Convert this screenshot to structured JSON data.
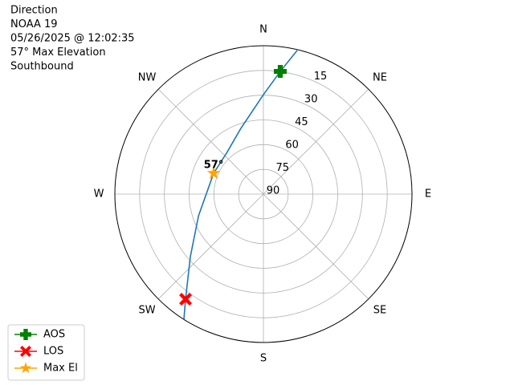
{
  "chart_data": {
    "type": "polar",
    "title_lines": [
      "Direction",
      "NOAA 19",
      "05/26/2025 @ 12:02:35",
      "57° Max Elevation",
      "Southbound"
    ],
    "rlim": [
      90,
      0
    ],
    "rticks": [
      15,
      30,
      45,
      60,
      75,
      90
    ],
    "thetaticks": [
      {
        "value": 0,
        "label": "N"
      },
      {
        "value": 45,
        "label": "NE"
      },
      {
        "value": 90,
        "label": "E"
      },
      {
        "value": 135,
        "label": "SE"
      },
      {
        "value": 180,
        "label": "S"
      },
      {
        "value": 225,
        "label": "SW"
      },
      {
        "value": 270,
        "label": "W"
      },
      {
        "value": 315,
        "label": "NW"
      }
    ],
    "grid": true,
    "legend": "lower left",
    "series": [
      {
        "color": "#1f77b4",
        "marker": "none",
        "azimuth": [
          13.2,
          7.8,
          0,
          341,
          318.5,
          292.8,
          251.4,
          229.4,
          216.5,
          212.4
        ],
        "elevation": [
          0.5,
          14.9,
          29.7,
          47.9,
          56.5,
          57.3,
          48.5,
          31.7,
          10.7,
          0.1
        ]
      },
      {
        "name": "AOS",
        "color": "green",
        "marker": "plus",
        "azimuth": [
          7.8
        ],
        "elevation": [
          14.9
        ]
      },
      {
        "name": "LOS",
        "color": "red",
        "marker": "x",
        "azimuth": [
          216.5
        ],
        "elevation": [
          10.7
        ]
      },
      {
        "name": "Max El",
        "color": "orange",
        "marker": "star",
        "azimuth": [
          292.8
        ],
        "elevation": [
          57.3
        ]
      }
    ],
    "annotation": "57°"
  }
}
